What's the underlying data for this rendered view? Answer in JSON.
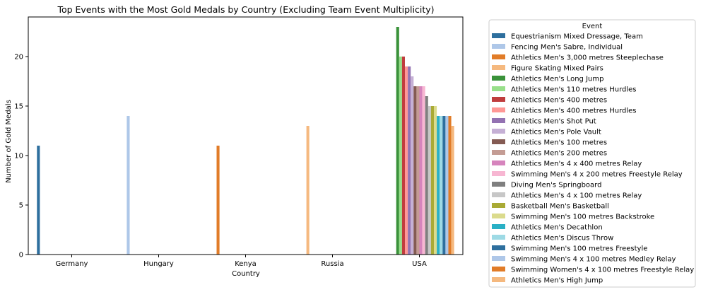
{
  "chart_data": {
    "type": "bar",
    "title": "Top Events with the Most Gold Medals by Country (Excluding Team Event Multiplicity)",
    "xlabel": "Country",
    "ylabel": "Number of Gold Medals",
    "ylim": [
      0,
      24
    ],
    "yticks": [
      0,
      5,
      10,
      15,
      20
    ],
    "grid": false,
    "legend_position": "outside right",
    "legend_title": "Event",
    "categories": [
      "Germany",
      "Hungary",
      "Kenya",
      "Russia",
      "USA"
    ],
    "series": [
      {
        "name": "Equestrianism Mixed Dressage, Team",
        "color": "#2e6f9e",
        "values": [
          11,
          null,
          null,
          null,
          null
        ]
      },
      {
        "name": "Fencing Men's Sabre, Individual",
        "color": "#aec7e8",
        "values": [
          null,
          14,
          null,
          null,
          null
        ]
      },
      {
        "name": "Athletics Men's 3,000 metres Steeplechase",
        "color": "#e17c28",
        "values": [
          null,
          null,
          11,
          null,
          null
        ]
      },
      {
        "name": "Figure Skating Mixed Pairs",
        "color": "#f5b97f",
        "values": [
          null,
          null,
          null,
          13,
          null
        ]
      },
      {
        "name": "Athletics Men's Long Jump",
        "color": "#3a923a",
        "values": [
          null,
          null,
          null,
          null,
          23
        ]
      },
      {
        "name": "Athletics Men's 110 metres Hurdles",
        "color": "#98df8a",
        "values": [
          null,
          null,
          null,
          null,
          20
        ]
      },
      {
        "name": "Athletics Men's 400 metres",
        "color": "#c03d3e",
        "values": [
          null,
          null,
          null,
          null,
          20
        ]
      },
      {
        "name": "Athletics Men's 400 metres Hurdles",
        "color": "#ff9896",
        "values": [
          null,
          null,
          null,
          null,
          19
        ]
      },
      {
        "name": "Athletics Men's Shot Put",
        "color": "#9372b2",
        "values": [
          null,
          null,
          null,
          null,
          19
        ]
      },
      {
        "name": "Athletics Men's Pole Vault",
        "color": "#c5b0d5",
        "values": [
          null,
          null,
          null,
          null,
          18
        ]
      },
      {
        "name": "Athletics Men's 100 metres",
        "color": "#845b53",
        "values": [
          null,
          null,
          null,
          null,
          17
        ]
      },
      {
        "name": "Athletics Men's 200 metres",
        "color": "#c49c94",
        "values": [
          null,
          null,
          null,
          null,
          17
        ]
      },
      {
        "name": "Athletics Men's 4 x 400 metres Relay",
        "color": "#d684bd",
        "values": [
          null,
          null,
          null,
          null,
          17
        ]
      },
      {
        "name": "Swimming Men's 4 x 200 metres Freestyle Relay",
        "color": "#f7b6d2",
        "values": [
          null,
          null,
          null,
          null,
          17
        ]
      },
      {
        "name": "Diving Men's Springboard",
        "color": "#7f7f7f",
        "values": [
          null,
          null,
          null,
          null,
          16
        ]
      },
      {
        "name": "Athletics Men's 4 x 100 metres Relay",
        "color": "#c7c7c7",
        "values": [
          null,
          null,
          null,
          null,
          15
        ]
      },
      {
        "name": "Basketball Men's Basketball",
        "color": "#a9aa35",
        "values": [
          null,
          null,
          null,
          null,
          15
        ]
      },
      {
        "name": "Swimming Men's 100 metres Backstroke",
        "color": "#dbdb8d",
        "values": [
          null,
          null,
          null,
          null,
          15
        ]
      },
      {
        "name": "Athletics Men's Decathlon",
        "color": "#2ab0c5",
        "values": [
          null,
          null,
          null,
          null,
          14
        ]
      },
      {
        "name": "Athletics Men's Discus Throw",
        "color": "#9edae5",
        "values": [
          null,
          null,
          null,
          null,
          14
        ]
      },
      {
        "name": "Swimming Men's 100 metres Freestyle",
        "color": "#2e6f9e",
        "values": [
          null,
          null,
          null,
          null,
          14
        ]
      },
      {
        "name": "Swimming Men's 4 x 100 metres Medley Relay",
        "color": "#aec7e8",
        "values": [
          null,
          null,
          null,
          null,
          14
        ]
      },
      {
        "name": "Swimming Women's 4 x 100 metres Freestyle Relay",
        "color": "#e17c28",
        "values": [
          null,
          null,
          null,
          null,
          14
        ]
      },
      {
        "name": "Athletics Men's High Jump",
        "color": "#f5b97f",
        "values": [
          null,
          null,
          null,
          null,
          13
        ]
      }
    ]
  }
}
